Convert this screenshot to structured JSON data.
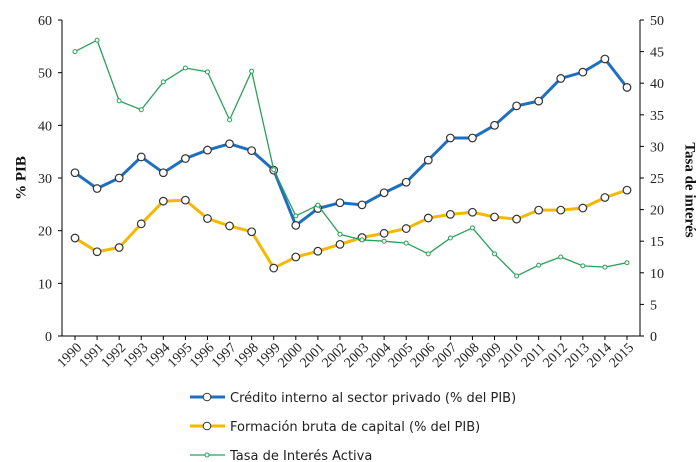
{
  "chart_data": {
    "type": "line",
    "y_label": "% PIB",
    "y2_label": "Tasa de interés",
    "categories": [
      "1990",
      "1991",
      "1992",
      "1993",
      "1994",
      "1995",
      "1996",
      "1997",
      "1998",
      "1999",
      "2000",
      "2001",
      "2002",
      "2003",
      "2004",
      "2005",
      "2006",
      "2007",
      "2008",
      "2009",
      "2010",
      "2011",
      "2012",
      "2013",
      "2014",
      "2015"
    ],
    "ylim": [
      0,
      60
    ],
    "yticks": [
      0,
      10,
      20,
      30,
      40,
      50,
      60
    ],
    "y2lim": [
      0,
      50
    ],
    "y2ticks": [
      0,
      5,
      10,
      15,
      20,
      25,
      30,
      35,
      40,
      45,
      50
    ],
    "grid": false,
    "series": [
      {
        "name": "Crédito interno al sector privado (% del PIB)",
        "color": "#1f6fc1",
        "values": [
          31,
          28,
          30,
          34,
          31,
          33.7,
          35.3,
          36.5,
          35.2,
          31.5,
          21,
          24.2,
          25.3,
          24.9,
          27.2,
          29.2,
          33.4,
          37.6,
          37.6,
          40,
          43.7,
          44.6,
          48.9,
          50.1,
          52.6,
          47.2
        ]
      },
      {
        "name": "Formación bruta de capital (% del PIB)",
        "color": "#f5b800",
        "values": [
          18.6,
          16,
          16.8,
          21.3,
          25.6,
          25.8,
          22.3,
          20.9,
          19.8,
          12.9,
          15,
          16.1,
          17.4,
          18.7,
          19.5,
          20.4,
          22.4,
          23.1,
          23.5,
          22.6,
          22.2,
          23.9,
          23.9,
          24.3,
          26.3,
          27.7
        ]
      },
      {
        "name": "Tasa de Interés Activa",
        "color": "#2ca05a",
        "axis": "y2",
        "values": [
          45,
          46.8,
          37.2,
          35.8,
          40.2,
          42.4,
          41.8,
          34.2,
          41.9,
          26.3,
          19,
          20.7,
          16.1,
          15.2,
          15,
          14.7,
          13,
          15.5,
          17.1,
          13,
          9.5,
          11.2,
          12.5,
          11.1,
          10.9,
          11.6
        ]
      }
    ]
  }
}
